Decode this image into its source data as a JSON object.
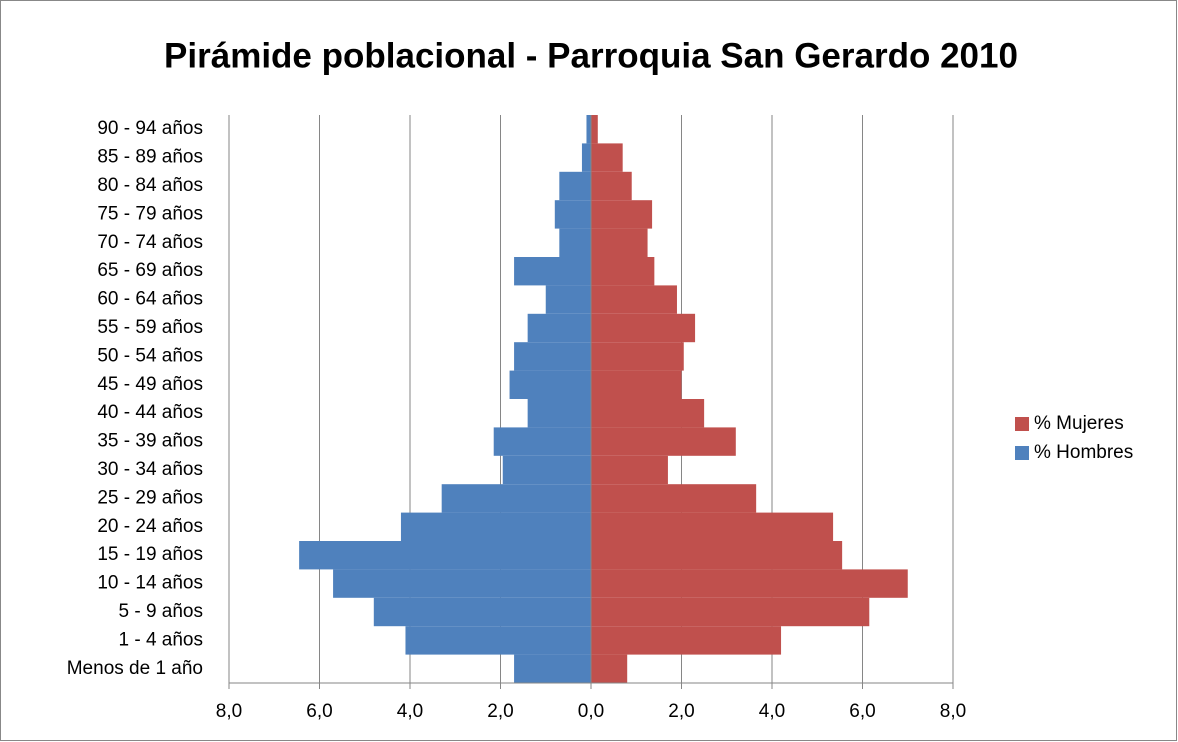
{
  "chart_data": {
    "type": "pyramid",
    "title": "Pirámide poblacional - Parroquia San Gerardo 2010",
    "categories": [
      "Menos de 1 año",
      "1 - 4 años",
      "5 - 9 años",
      "10 - 14 años",
      "15 - 19 años",
      "20 - 24 años",
      "25 - 29 años",
      "30 - 34 años",
      "35 - 39 años",
      "40 - 44 años",
      "45 - 49 años",
      "50 - 54 años",
      "55 - 59 años",
      "60 - 64 años",
      "65 - 69 años",
      "70 - 74 años",
      "75 - 79 años",
      "80 - 84 años",
      "85 - 89 años",
      "90 - 94 años"
    ],
    "series": [
      {
        "name": "% Mujeres",
        "color": "#c0504d",
        "values": [
          0.8,
          4.2,
          6.15,
          7.0,
          5.55,
          5.35,
          3.65,
          1.7,
          3.2,
          2.5,
          2.0,
          2.05,
          2.3,
          1.9,
          1.4,
          1.25,
          1.35,
          0.9,
          0.7,
          0.15
        ]
      },
      {
        "name": "% Hombres",
        "color": "#4f81bd",
        "values": [
          -1.7,
          -4.1,
          -4.8,
          -5.7,
          -6.45,
          -4.2,
          -3.3,
          -1.95,
          -2.15,
          -1.4,
          -1.8,
          -1.7,
          -1.4,
          -1.0,
          -1.7,
          -0.7,
          -0.8,
          -0.7,
          -0.2,
          -0.1
        ]
      }
    ],
    "xlim": [
      -8,
      8
    ],
    "xticks": [
      {
        "value": -8,
        "label": "8,0"
      },
      {
        "value": -6,
        "label": "6,0"
      },
      {
        "value": -4,
        "label": "4,0"
      },
      {
        "value": -2,
        "label": "2,0"
      },
      {
        "value": 0,
        "label": "0,0"
      },
      {
        "value": 2,
        "label": "2,0"
      },
      {
        "value": 4,
        "label": "4,0"
      },
      {
        "value": 6,
        "label": "6,0"
      },
      {
        "value": 8,
        "label": "8,0"
      }
    ],
    "grid": true,
    "legend": "right"
  }
}
